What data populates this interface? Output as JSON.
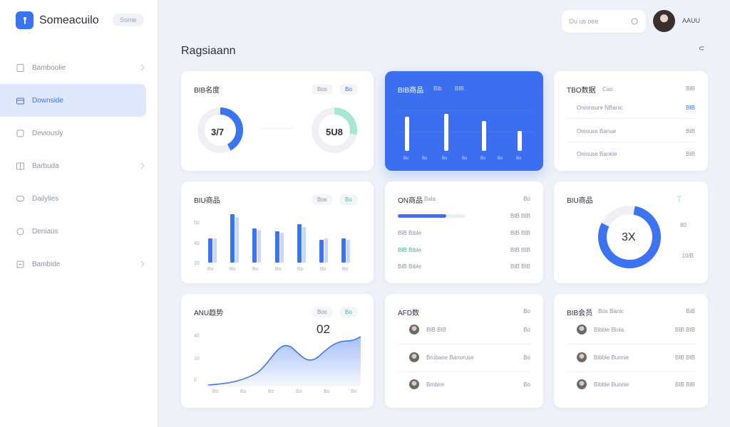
{
  "brand": {
    "name": "Someacuilo",
    "pill": "Some"
  },
  "nav": [
    {
      "label": "Bamboolie",
      "active": false,
      "chev": true
    },
    {
      "label": "Downside",
      "active": true,
      "chev": false
    },
    {
      "label": "Deviously",
      "active": false,
      "chev": false
    },
    {
      "label": "Barbuda",
      "active": false,
      "chev": true
    },
    {
      "label": "Dailylies",
      "active": false,
      "chev": false
    },
    {
      "label": "Deniaus",
      "active": false,
      "chev": false
    },
    {
      "label": "Bambide",
      "active": false,
      "chev": true
    }
  ],
  "topbar": {
    "search_placeholder": "Ou us oee",
    "user_name": "AAUU"
  },
  "page": {
    "title": "Ragsiaann",
    "more": "⊂"
  },
  "cards": {
    "c1": {
      "title": "BIB名度",
      "pill1": "Bos",
      "pill2": "Bo",
      "donut1": "3/7",
      "donut2": "5U8"
    },
    "c2": {
      "title": "BIB商品",
      "sub1": "Bib",
      "sub2": "BIB"
    },
    "c3": {
      "title": "TBO数据",
      "pill": "Cao",
      "rows": [
        {
          "text": "Onionsure NBanic",
          "val": "BIB"
        },
        {
          "text": "Oniouse Banue",
          "val": "BIB"
        },
        {
          "text": "Oniouse Bankie",
          "val": "BIB"
        }
      ]
    },
    "c4": {
      "title": "BIU商品",
      "pill1": "Bos",
      "pill2": "Bo",
      "ylabels": [
        "50",
        "40",
        "20"
      ],
      "xlabels": [
        "Bo",
        "Bo",
        "Bo",
        "Bo",
        "Bo",
        "Bo",
        "Bo"
      ]
    },
    "c5": {
      "title": "ON商品",
      "sub": "Bala",
      "head_val": "Bo",
      "rows": [
        {
          "text": "BIB BIB",
          "val": "BIB BIB"
        },
        {
          "text": "BIB Bible",
          "val": "BIB BIB"
        },
        {
          "text": "BIB Bible",
          "val": "BIB BIB"
        },
        {
          "text": "BIB Bible",
          "val": "BIB BIB"
        }
      ]
    },
    "c6": {
      "title": "BIU商品",
      "donut": "3X",
      "side1": "80",
      "side2": "10/B"
    },
    "c7": {
      "title": "ANU趋势",
      "pill1": "Bos",
      "pill2": "Bo",
      "value": "02",
      "ylabels": [
        "40",
        "20",
        "0"
      ],
      "xlabels": [
        "Bo",
        "Bo",
        "Bo",
        "Bo",
        "Bo",
        "Bo"
      ]
    },
    "c8": {
      "title": "AFD数",
      "head_val": "Bo",
      "rows": [
        {
          "text": "BIB BIB",
          "val": "Bo"
        },
        {
          "text": "Brubane Banoruse",
          "val": "Bo"
        },
        {
          "text": "Bmbire",
          "val": "Bo"
        }
      ]
    },
    "c9": {
      "title": "BIB会员",
      "sub": "Bos Banic",
      "head_val": "BiB",
      "rows": [
        {
          "text": "Bibble Biola",
          "val": "BIB BIB"
        },
        {
          "text": "Bibble Bunnie",
          "val": "BIB BIB"
        },
        {
          "text": "Bibble Bunnie",
          "val": "BIB BIB"
        }
      ]
    }
  },
  "colors": {
    "accent": "#3b73f0",
    "green": "#3cbf8c"
  }
}
